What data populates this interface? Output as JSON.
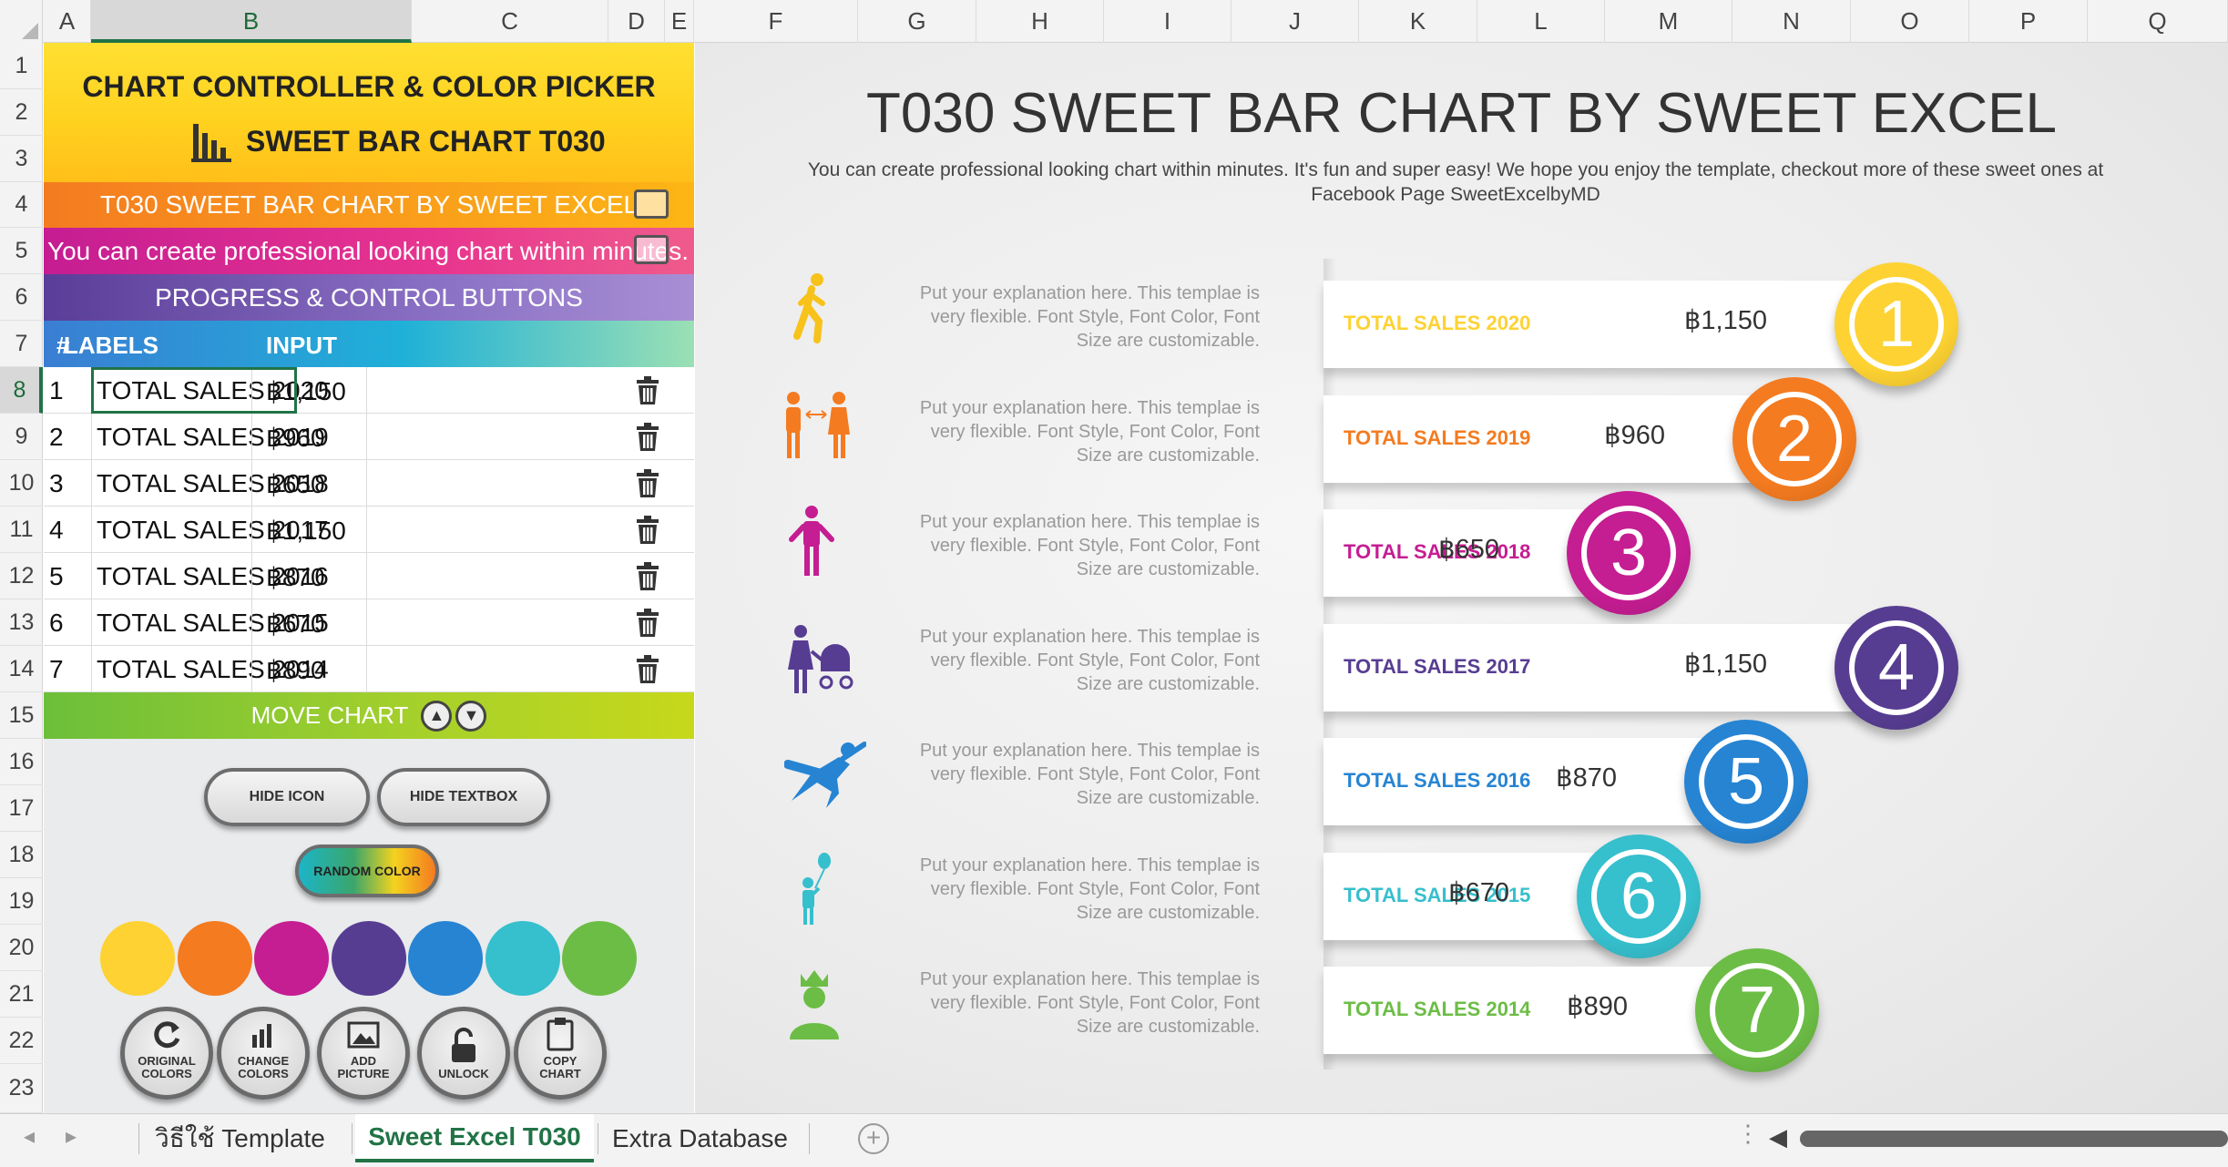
{
  "columns": [
    "A",
    "B",
    "C",
    "D",
    "E",
    "F",
    "G",
    "H",
    "I",
    "J",
    "K",
    "L",
    "M",
    "N",
    "O",
    "P",
    "Q"
  ],
  "rows": [
    "1",
    "2",
    "3",
    "4",
    "5",
    "6",
    "7",
    "8",
    "9",
    "10",
    "11",
    "12",
    "13",
    "14",
    "15",
    "16",
    "17",
    "18",
    "19",
    "20",
    "21",
    "22",
    "23"
  ],
  "panel": {
    "title": "CHART CONTROLLER & COLOR PICKER",
    "subtitle": "SWEET BAR CHART T030",
    "chart_title_cell": "T030 SWEET BAR CHART BY SWEET EXCEL",
    "description_cell": "You can create professional looking chart within minutes. It's fun",
    "progress_header": "PROGRESS & CONTROL BUTTONS",
    "col_num": "#",
    "col_labels": "LABELS",
    "col_input": "INPUT",
    "rows": [
      {
        "num": "1",
        "label": "TOTAL SALES 2020",
        "value": "฿1,150"
      },
      {
        "num": "2",
        "label": "TOTAL SALES 2019",
        "value": "฿960"
      },
      {
        "num": "3",
        "label": "TOTAL SALES 2018",
        "value": "฿650"
      },
      {
        "num": "4",
        "label": "TOTAL SALES 2017",
        "value": "฿1,150"
      },
      {
        "num": "5",
        "label": "TOTAL SALES 2016",
        "value": "฿870"
      },
      {
        "num": "6",
        "label": "TOTAL SALES 2015",
        "value": "฿670"
      },
      {
        "num": "7",
        "label": "TOTAL SALES 2014",
        "value": "฿890"
      }
    ],
    "move_chart": "MOVE CHART",
    "hide_icon": "HIDE ICON",
    "hide_textbox": "HIDE TEXTBOX",
    "random_color": "RANDOM COLOR",
    "swatches": [
      "#fdd232",
      "#f47b20",
      "#c51d92",
      "#573d92",
      "#2684d3",
      "#36bfcd",
      "#6cbd45"
    ],
    "btn_original": [
      "ORIGINAL",
      "COLORS"
    ],
    "btn_change": [
      "CHANGE",
      "COLORS"
    ],
    "btn_add": [
      "ADD",
      "PICTURE"
    ],
    "btn_unlock": [
      "UNLOCK"
    ],
    "btn_copy": [
      "COPY",
      "CHART"
    ]
  },
  "chart": {
    "title": "T030 SWEET BAR CHART BY SWEET EXCEL",
    "subtitle": "You can create professional looking chart within minutes. It's fun and super easy! We hope you enjoy the template, checkout more of these sweet ones at Facebook Page SweetExcelbyMD",
    "explanation": "Put your explanation here.  This templae is very flexible. Font Style, Font Color, Font Size are customizable."
  },
  "chart_data": {
    "type": "bar",
    "categories": [
      "TOTAL SALES 2020",
      "TOTAL SALES 2019",
      "TOTAL SALES 2018",
      "TOTAL SALES 2017",
      "TOTAL SALES 2016",
      "TOTAL SALES 2015",
      "TOTAL SALES 2014"
    ],
    "values": [
      1150,
      960,
      650,
      1150,
      870,
      670,
      890
    ],
    "value_labels": [
      "฿1,150",
      "฿960",
      "฿650",
      "฿1,150",
      "฿870",
      "฿670",
      "฿890"
    ],
    "rank_labels": [
      "1",
      "2",
      "3",
      "4",
      "5",
      "6",
      "7"
    ],
    "colors": [
      "#fdd232",
      "#f47b20",
      "#c51d92",
      "#573d92",
      "#2684d3",
      "#36bfcd",
      "#6cbd45"
    ],
    "orientation": "horizontal",
    "title": "T030 SWEET BAR CHART BY SWEET EXCEL"
  },
  "sheets": {
    "tab1": "วิธีใช้ Template",
    "tab2": "Sweet Excel T030",
    "tab3": "Extra Database"
  }
}
